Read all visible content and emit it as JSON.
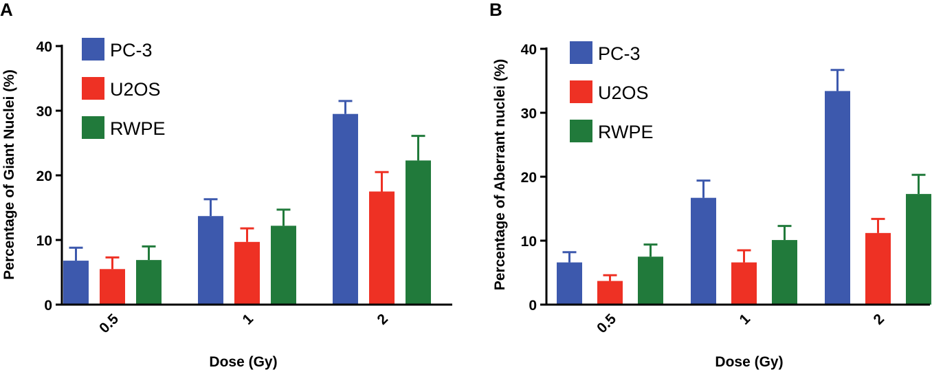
{
  "chart_data": [
    {
      "type": "bar",
      "panel": "A",
      "title": "",
      "xlabel": "Dose (Gy)",
      "ylabel": "Percentage of Giant Nuclei (%)",
      "ylim": [
        0,
        40
      ],
      "yticks": [
        "0",
        "10",
        "20",
        "30",
        "40"
      ],
      "categories": [
        "0.5",
        "1",
        "2"
      ],
      "legend_position": "top-left",
      "series": [
        {
          "name": "PC-3",
          "color": "#3d59ad",
          "values": [
            6.8,
            13.7,
            29.5
          ],
          "errors": [
            2.0,
            2.6,
            2.0
          ]
        },
        {
          "name": "U2OS",
          "color": "#ee3124",
          "values": [
            5.5,
            9.7,
            17.5
          ],
          "errors": [
            1.8,
            2.1,
            3.0
          ]
        },
        {
          "name": "RWPE",
          "color": "#217a3b",
          "values": [
            6.9,
            12.2,
            22.3
          ],
          "errors": [
            2.1,
            2.5,
            3.8
          ]
        }
      ]
    },
    {
      "type": "bar",
      "panel": "B",
      "title": "",
      "xlabel": "Dose (Gy)",
      "ylabel": "Percentage of Aberrant nuclei (%)",
      "ylim": [
        0,
        40
      ],
      "yticks": [
        "0",
        "10",
        "20",
        "30",
        "40"
      ],
      "categories": [
        "0.5",
        "1",
        "2"
      ],
      "legend_position": "top-left",
      "series": [
        {
          "name": "PC-3",
          "color": "#3d59ad",
          "values": [
            6.6,
            16.7,
            33.4
          ],
          "errors": [
            1.6,
            2.7,
            3.3
          ]
        },
        {
          "name": "U2OS",
          "color": "#ee3124",
          "values": [
            3.7,
            6.6,
            11.2
          ],
          "errors": [
            0.9,
            1.9,
            2.2
          ]
        },
        {
          "name": "RWPE",
          "color": "#217a3b",
          "values": [
            7.5,
            10.1,
            17.3
          ],
          "errors": [
            1.9,
            2.2,
            3.0
          ]
        }
      ]
    }
  ]
}
